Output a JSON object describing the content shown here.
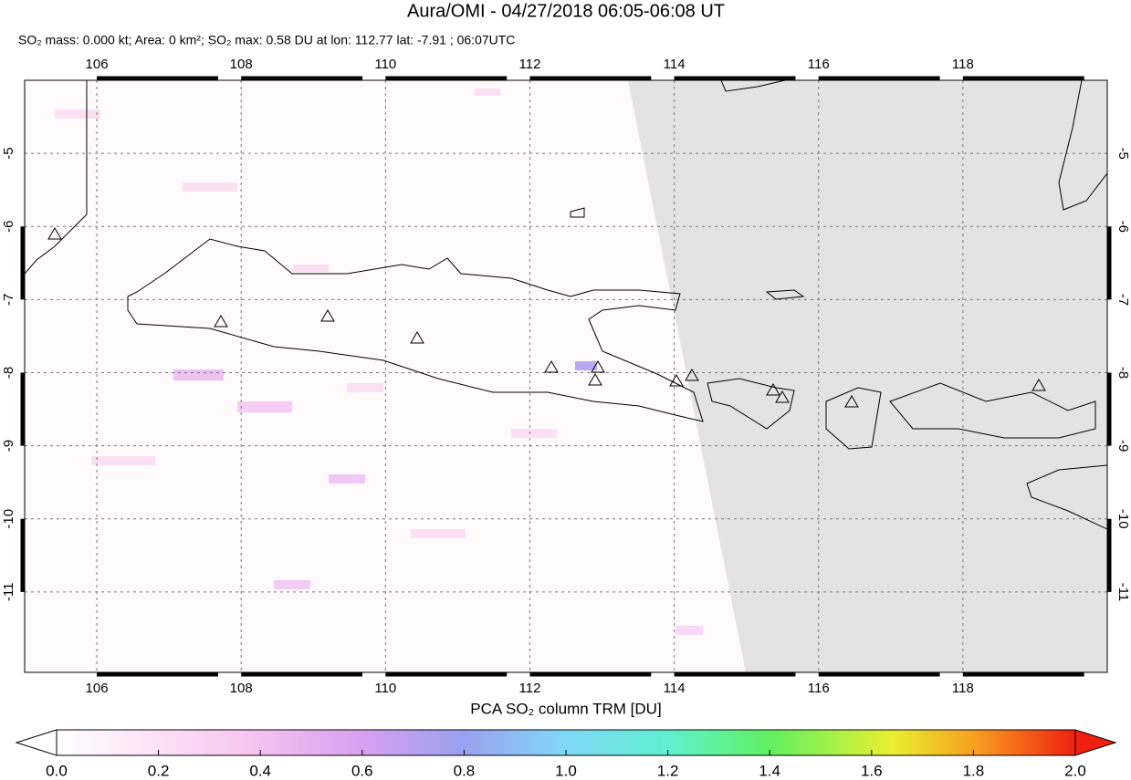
{
  "map": {
    "title": "Aura/OMI - 04/27/2018 06:05-06:08 UT",
    "subtitle": "SO₂ mass: 0.000 kt; Area: 0 km²; SO₂ max: 0.58 DU at lon: 112.77 lat: -7.91 ; 06:07UTC",
    "xlim": [
      105,
      120
    ],
    "ylim": [
      -12.1,
      -4
    ],
    "xticks": [
      106,
      108,
      110,
      112,
      114,
      116,
      118
    ],
    "yticks": [
      -5,
      -6,
      -7,
      -8,
      -9,
      -10,
      -11
    ],
    "colorbar": {
      "label": "PCA SO₂ column TRM [DU]",
      "lim": [
        0,
        2
      ],
      "ticks": [
        {
          "value": 0,
          "label": "0.0"
        },
        {
          "value": 0.2,
          "label": "0.2"
        },
        {
          "value": 0.4,
          "label": "0.4"
        },
        {
          "value": 0.6,
          "label": "0.6"
        },
        {
          "value": 0.8,
          "label": "0.8"
        },
        {
          "value": 1,
          "label": "1.0"
        },
        {
          "value": 1.2,
          "label": "1.2"
        },
        {
          "value": 1.4,
          "label": "1.4"
        },
        {
          "value": 1.6,
          "label": "1.6"
        },
        {
          "value": 1.8,
          "label": "1.8"
        },
        {
          "value": 2,
          "label": "2.0"
        }
      ]
    }
  }
}
